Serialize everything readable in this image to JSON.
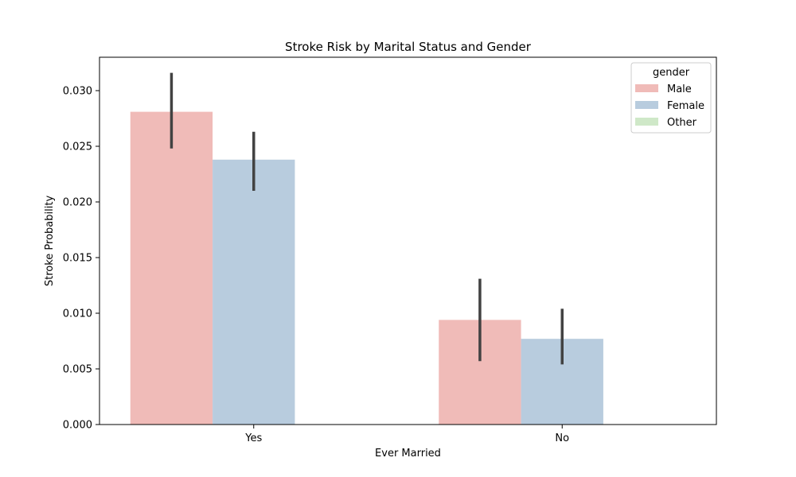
{
  "chart_data": {
    "type": "bar",
    "title": "Stroke Risk by Marital Status and Gender",
    "xlabel": "Ever Married",
    "ylabel": "Stroke Probability",
    "categories": [
      "Yes",
      "No"
    ],
    "ylim": [
      0,
      0.033
    ],
    "yticks": [
      "0.000",
      "0.005",
      "0.010",
      "0.015",
      "0.020",
      "0.025",
      "0.030"
    ],
    "grid": false,
    "legend": {
      "title": "gender",
      "placement": "top-right"
    },
    "series": [
      {
        "name": "Male",
        "color": "#f0bbb8",
        "values": [
          0.0281,
          0.0094
        ],
        "ci_low": [
          0.0248,
          0.0057
        ],
        "ci_high": [
          0.0316,
          0.0131
        ]
      },
      {
        "name": "Female",
        "color": "#b8ccde",
        "values": [
          0.0238,
          0.0077
        ],
        "ci_low": [
          0.021,
          0.0054
        ],
        "ci_high": [
          0.0263,
          0.0104
        ]
      },
      {
        "name": "Other",
        "color": "#cfe8c8",
        "values": [
          null,
          null
        ],
        "ci_low": [
          null,
          null
        ],
        "ci_high": [
          null,
          null
        ]
      }
    ],
    "errorbar_color": "#424242"
  }
}
